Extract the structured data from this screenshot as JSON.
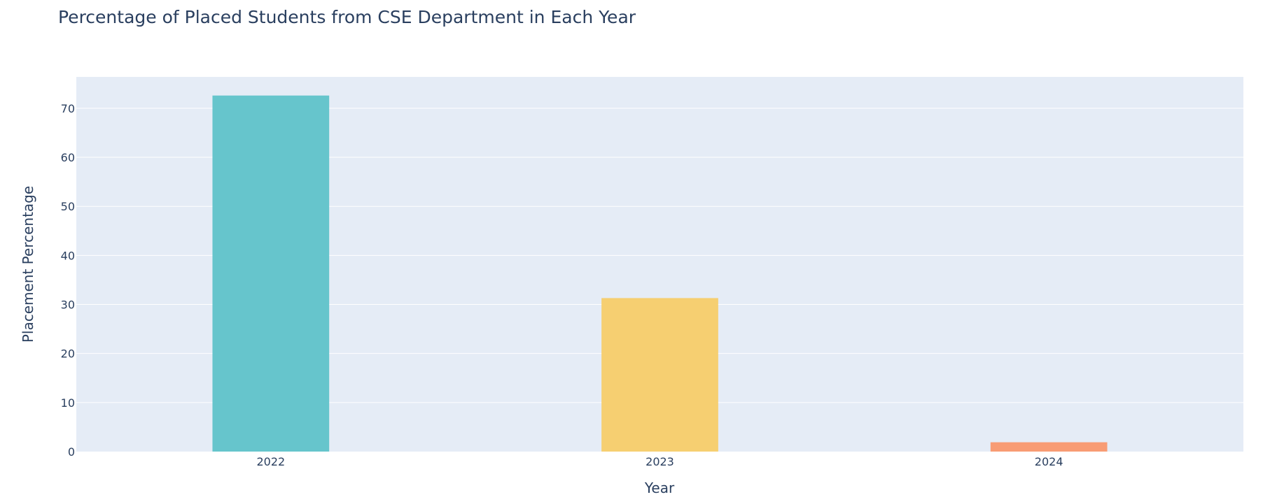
{
  "chart_data": {
    "type": "bar",
    "title": "Percentage of Placed Students from CSE Department in Each Year",
    "xlabel": "Year",
    "ylabel": "Placement Percentage",
    "categories": [
      "2022",
      "2023",
      "2024"
    ],
    "values": [
      72.6,
      31.3,
      1.9
    ],
    "colors": [
      "#66c5cc",
      "#f6cf71",
      "#f89c74"
    ],
    "ylim": [
      0,
      76.4
    ],
    "yticks": [
      0,
      10,
      20,
      30,
      40,
      50,
      60,
      70
    ],
    "grid": true,
    "plot_background": "#e5ecf6",
    "legend": "none"
  }
}
